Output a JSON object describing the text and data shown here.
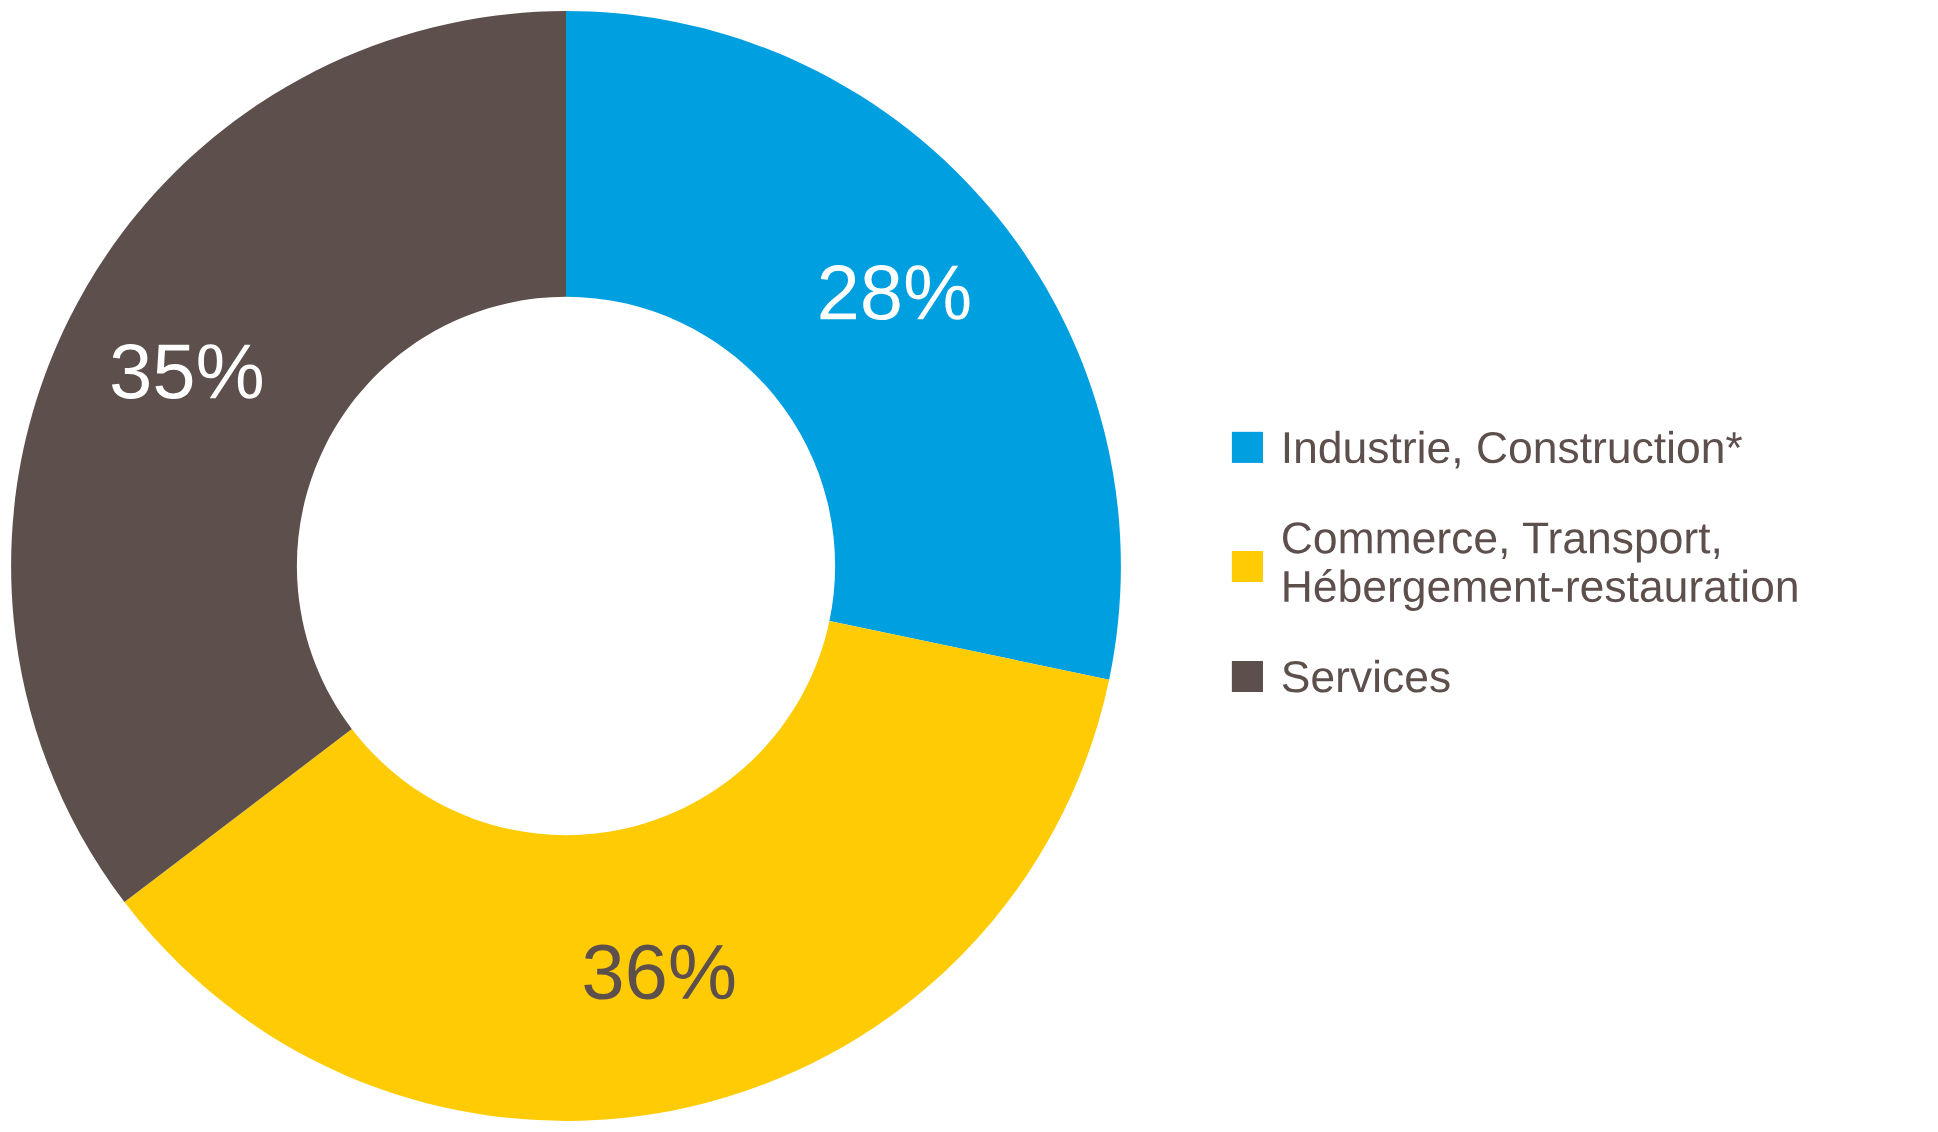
{
  "chart_data": {
    "type": "donut",
    "categories": [
      "Industrie, Construction*",
      "Commerce, Transport,\nHébergement-restauration",
      "Services"
    ],
    "values": [
      28,
      36,
      35
    ],
    "colors": [
      "#009fe0",
      "#ffcb05",
      "#5d4f4b"
    ],
    "value_labels": [
      "28%",
      "36%",
      "35%"
    ],
    "legend": "right"
  }
}
